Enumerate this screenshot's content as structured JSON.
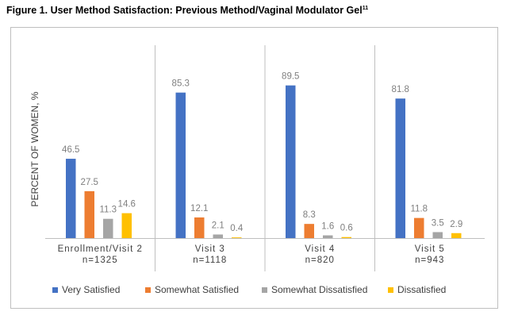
{
  "figure": {
    "title": "Figure 1. User Method Satisfaction: Previous Method/Vaginal Modulator Gel",
    "title_superscript": "11"
  },
  "chart_data": {
    "type": "bar",
    "ylabel": "PERCENT OF WOMEN, %",
    "xlabel": "",
    "ylim": [
      0,
      100
    ],
    "grid": false,
    "legend_position": "bottom",
    "categories": [
      [
        "Enrollment/Visit 2",
        "n=1325"
      ],
      [
        "Visit 3",
        "n=1118"
      ],
      [
        "Visit 4",
        "n=820"
      ],
      [
        "Visit 5",
        "n=943"
      ]
    ],
    "series": [
      {
        "name": "Very Satisfied",
        "color": "#4472C4",
        "values": [
          46.5,
          85.3,
          89.5,
          81.8
        ]
      },
      {
        "name": "Somewhat Satisfied",
        "color": "#ED7D31",
        "values": [
          27.5,
          12.1,
          8.3,
          11.8
        ]
      },
      {
        "name": "Somewhat Dissatisfied",
        "color": "#A5A5A5",
        "values": [
          11.3,
          2.1,
          1.6,
          3.5
        ]
      },
      {
        "name": "Dissatisfied",
        "color": "#FFC000",
        "values": [
          14.6,
          0.4,
          0.6,
          2.9
        ]
      }
    ],
    "label_color": "#7f7f7f",
    "divider_color": "#bfbfbf"
  }
}
